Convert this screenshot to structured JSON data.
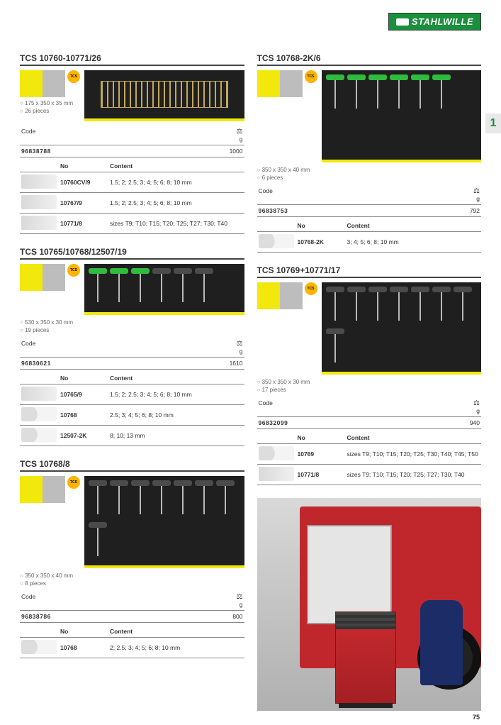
{
  "brand": "STAHLWILLE",
  "page_tab": "1",
  "page_number": "75",
  "table_headers": {
    "code": "Code",
    "weight_unit": "g",
    "no": "No",
    "content": "Content"
  },
  "badge_label": "TCS",
  "products": {
    "p1": {
      "title": "TCS 10760-10771/26",
      "dims": "175 x 350 x 35 mm",
      "pieces": "26 pieces",
      "code": "96838788",
      "weight": "1000",
      "items": [
        {
          "no": "10760CV/9",
          "content": "1.5; 2; 2.5; 3; 4; 5; 6; 8; 10 mm"
        },
        {
          "no": "10767/9",
          "content": "1.5; 2; 2.5; 3; 4; 5; 6; 8; 10 mm"
        },
        {
          "no": "10771/8",
          "content": "sizes T9; T10; T15; T20; T25; T27; T30; T40"
        }
      ]
    },
    "p2": {
      "title": "TCS 10765/10768/12507/19",
      "dims": "530 x 350 x 30 mm",
      "pieces": "19 pieces",
      "code": "96830621",
      "weight": "1610",
      "items": [
        {
          "no": "10765/9",
          "content": "1.5; 2; 2.5; 3; 4; 5; 6; 8; 10 mm"
        },
        {
          "no": "10768",
          "content": "2.5; 3; 4; 5; 6; 8; 10 mm"
        },
        {
          "no": "12507-2K",
          "content": "8; 10; 13 mm"
        }
      ]
    },
    "p3": {
      "title": "TCS 10768/8",
      "dims": "350 x 350 x 40 mm",
      "pieces": "8 pieces",
      "code": "96838786",
      "weight": "800",
      "items": [
        {
          "no": "10768",
          "content": "2; 2.5; 3; 4; 5; 6; 8; 10 mm"
        }
      ]
    },
    "p4": {
      "title": "TCS 10768-2K/6",
      "dims": "350 x 350 x 40 mm",
      "pieces": "6 pieces",
      "code": "96838753",
      "weight": "792",
      "items": [
        {
          "no": "10768-2K",
          "content": "3; 4; 5; 6; 8; 10 mm"
        }
      ]
    },
    "p5": {
      "title": "TCS 10769+10771/17",
      "dims": "350 x 350 x 30 mm",
      "pieces": "17 pieces",
      "code": "96832099",
      "weight": "940",
      "items": [
        {
          "no": "10769",
          "content": "sizes T9; T10; T15; T20; T25; T30; T40; T45; T50"
        },
        {
          "no": "10771/8",
          "content": "sizes T9; T10; T15; T20; T25; T27; T30; T40"
        }
      ]
    }
  }
}
